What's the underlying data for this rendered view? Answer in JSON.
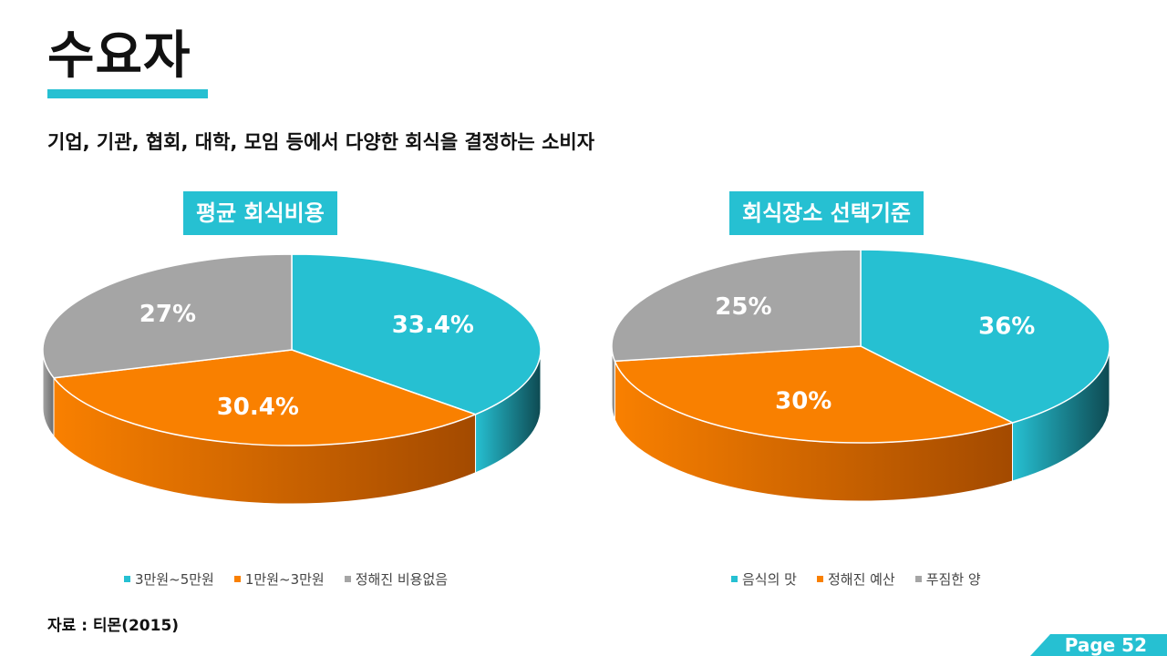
{
  "title": "수요자",
  "subtitle": "기업, 기관, 협회, 대학, 모임 등에서 다양한 회식을 결정하는 소비자",
  "source": "자료 : 티몬(2015)",
  "page": "Page 52",
  "colors": {
    "accent": "#26c0d2",
    "orange": "#f98000",
    "gray": "#a5a5a5",
    "text": "#111111"
  },
  "chart_data": [
    {
      "type": "pie",
      "title": "평균 회식비용",
      "categories": [
        "3만원~5만원",
        "1만원~3만원",
        "정해진 비용없음"
      ],
      "values": [
        33.4,
        30.4,
        27
      ],
      "labels": [
        "33.4%",
        "30.4%",
        "27%"
      ],
      "colors": [
        "#26c0d2",
        "#f98000",
        "#a5a5a5"
      ],
      "legend": "bottom"
    },
    {
      "type": "pie",
      "title": "회식장소 선택기준",
      "categories": [
        "음식의 맛",
        "정해진 예산",
        "푸짐한 양"
      ],
      "values": [
        36,
        30,
        25
      ],
      "labels": [
        "36%",
        "30%",
        "25%"
      ],
      "colors": [
        "#26c0d2",
        "#f98000",
        "#a5a5a5"
      ],
      "legend": "bottom"
    }
  ]
}
